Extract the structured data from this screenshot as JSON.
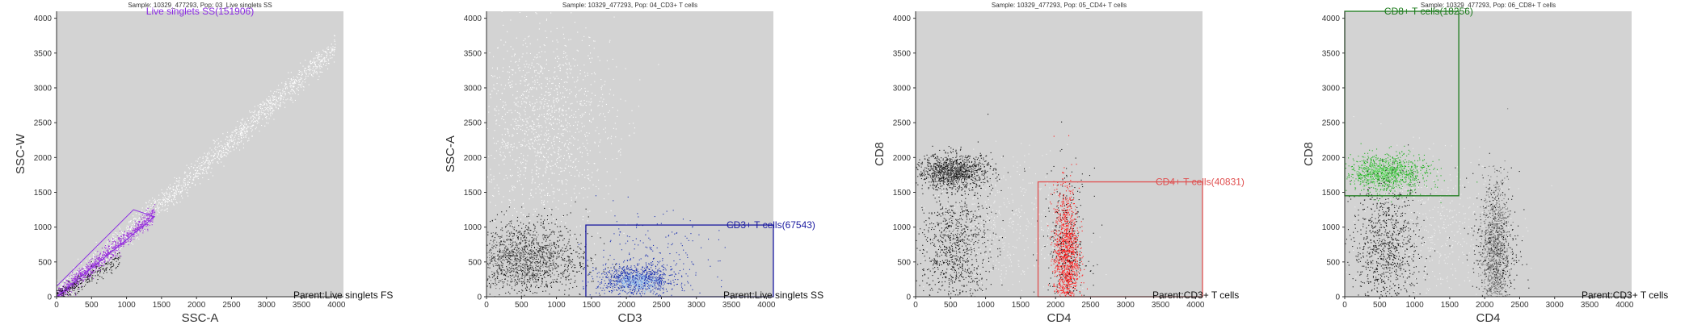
{
  "chart_data": [
    {
      "type": "scatter",
      "title": "Sample: 10329_477293, Pop: 03_Live singlets SS",
      "xlabel": "SSC-A",
      "ylabel": "SSC-W",
      "xlim": [
        0,
        4100
      ],
      "ylim": [
        0,
        4100
      ],
      "xticks": [
        0,
        500,
        1000,
        1500,
        2000,
        2500,
        3000,
        3500,
        4000
      ],
      "yticks": [
        0,
        500,
        1000,
        1500,
        2000,
        2500,
        3000,
        3500,
        4000
      ],
      "parent_label": "Parent:Live singlets FS",
      "gate": {
        "type": "polygon",
        "label": "Live singlets SS(151906)",
        "color": "#8a2be2",
        "points": [
          [
            0,
            0
          ],
          [
            1400,
            1150
          ],
          [
            1100,
            1250
          ],
          [
            0,
            150
          ]
        ]
      },
      "populations": [
        {
          "name": "diagonal",
          "color": "#ffffff",
          "count": 1700,
          "x": [
            0,
            3980
          ],
          "slope": 0.9,
          "spread": 90
        },
        {
          "name": "gated",
          "color": "#9b30d9",
          "count": 1100,
          "x": [
            0,
            1400
          ],
          "slope": 0.86,
          "spread": 60
        },
        {
          "name": "debris",
          "color": "#111111",
          "count": 250,
          "x": [
            0,
            900
          ],
          "slope": 0.6,
          "spread": 60
        }
      ]
    },
    {
      "type": "scatter",
      "title": "Sample: 10329_477293, Pop: 04_CD3+ T cells",
      "xlabel": "CD3",
      "ylabel": "SSC-A",
      "xlim": [
        0,
        4100
      ],
      "ylim": [
        0,
        4100
      ],
      "xticks": [
        0,
        500,
        1000,
        1500,
        2000,
        2500,
        3000,
        3500,
        4000
      ],
      "yticks": [
        0,
        500,
        1000,
        1500,
        2000,
        2500,
        3000,
        3500,
        4000
      ],
      "parent_label": "Parent:Live singlets SS",
      "gate": {
        "type": "rect",
        "label": "CD3+ T cells(67543)",
        "color": "#1a1aa0",
        "x0": 1420,
        "y0": 0,
        "x1": 4100,
        "y1": 1030
      },
      "clusters": [
        {
          "name": "granulocytes",
          "color": "#ffffff",
          "cx": 800,
          "cy": 2500,
          "sx": 500,
          "sy": 700,
          "count": 1400
        },
        {
          "name": "cd3-neg",
          "color": "#111111",
          "cx": 550,
          "cy": 550,
          "sx": 450,
          "sy": 300,
          "count": 1200
        },
        {
          "name": "cd3-neg-core",
          "color": "#666666",
          "cx": 500,
          "cy": 550,
          "sx": 280,
          "sy": 180,
          "count": 500
        },
        {
          "name": "cd3-pos",
          "color": "#1a2fb0",
          "cx": 2150,
          "cy": 250,
          "sx": 280,
          "sy": 110,
          "count": 900
        },
        {
          "name": "cd3-pos-core",
          "color": "#9ec6f0",
          "cx": 2150,
          "cy": 220,
          "sx": 160,
          "sy": 60,
          "count": 350
        },
        {
          "name": "cd3-pos-scatter",
          "color": "#1a2fb0",
          "cx": 2300,
          "cy": 600,
          "sx": 500,
          "sy": 300,
          "count": 160
        }
      ]
    },
    {
      "type": "scatter",
      "title": "Sample: 10329_477293, Pop: 05_CD4+ T cells",
      "xlabel": "CD4",
      "ylabel": "CD8",
      "xlim": [
        0,
        4100
      ],
      "ylim": [
        0,
        4100
      ],
      "xticks": [
        0,
        500,
        1000,
        1500,
        2000,
        2500,
        3000,
        3500,
        4000
      ],
      "yticks": [
        0,
        500,
        1000,
        1500,
        2000,
        2500,
        3000,
        3500,
        4000
      ],
      "parent_label": "Parent:CD3+ T cells",
      "gate": {
        "type": "rect",
        "label": "CD4+ T cells(40831)",
        "color": "#e05050",
        "x0": 1750,
        "y0": 0,
        "x1": 4100,
        "y1": 1650
      },
      "clusters": [
        {
          "name": "cd8-cluster",
          "color": "#111111",
          "cx": 550,
          "cy": 1800,
          "sx": 280,
          "sy": 130,
          "count": 900
        },
        {
          "name": "cd8-core",
          "color": "#555555",
          "cx": 500,
          "cy": 1800,
          "sx": 180,
          "sy": 80,
          "count": 300
        },
        {
          "name": "double-neg",
          "color": "#111111",
          "cx": 550,
          "cy": 700,
          "sx": 250,
          "sy": 450,
          "count": 900
        },
        {
          "name": "haze",
          "color": "#f2f2f2",
          "cx": 1200,
          "cy": 1000,
          "sx": 500,
          "sy": 500,
          "count": 500
        },
        {
          "name": "cd4-cluster",
          "color": "#ff1a1a",
          "cx": 2150,
          "cy": 600,
          "sx": 90,
          "sy": 480,
          "count": 1300
        },
        {
          "name": "cd4-outline",
          "color": "#111111",
          "cx": 2150,
          "cy": 700,
          "sx": 170,
          "sy": 550,
          "count": 300
        }
      ]
    },
    {
      "type": "scatter",
      "title": "Sample: 10329_477293, Pop: 06_CD8+ T cells",
      "xlabel": "CD4",
      "ylabel": "CD8",
      "xlim": [
        0,
        4100
      ],
      "ylim": [
        0,
        4100
      ],
      "xticks": [
        0,
        500,
        1000,
        1500,
        2000,
        2500,
        3000,
        3500,
        4000
      ],
      "yticks": [
        0,
        500,
        1000,
        1500,
        2000,
        2500,
        3000,
        3500,
        4000
      ],
      "parent_label": "Parent:CD3+ T cells",
      "gate": {
        "type": "rect",
        "label": "CD8+ T cells(18256)",
        "color": "#1a7a1a",
        "x0": 0,
        "y0": 1450,
        "x1": 1630,
        "y1": 4100
      },
      "clusters": [
        {
          "name": "cd8-cluster",
          "color": "#1fb01f",
          "cx": 600,
          "cy": 1780,
          "sx": 300,
          "sy": 140,
          "count": 900
        },
        {
          "name": "cd8-core",
          "color": "#70e070",
          "cx": 550,
          "cy": 1780,
          "sx": 180,
          "sy": 80,
          "count": 300
        },
        {
          "name": "double-neg",
          "color": "#111111",
          "cx": 600,
          "cy": 700,
          "sx": 250,
          "sy": 450,
          "count": 900
        },
        {
          "name": "haze",
          "color": "#f2f2f2",
          "cx": 1300,
          "cy": 1000,
          "sx": 500,
          "sy": 500,
          "count": 500
        },
        {
          "name": "cd4-cluster",
          "color": "#777777",
          "cx": 2150,
          "cy": 650,
          "sx": 90,
          "sy": 480,
          "count": 1000
        },
        {
          "name": "cd4-outline",
          "color": "#111111",
          "cx": 2150,
          "cy": 700,
          "sx": 170,
          "sy": 550,
          "count": 400
        }
      ]
    }
  ]
}
